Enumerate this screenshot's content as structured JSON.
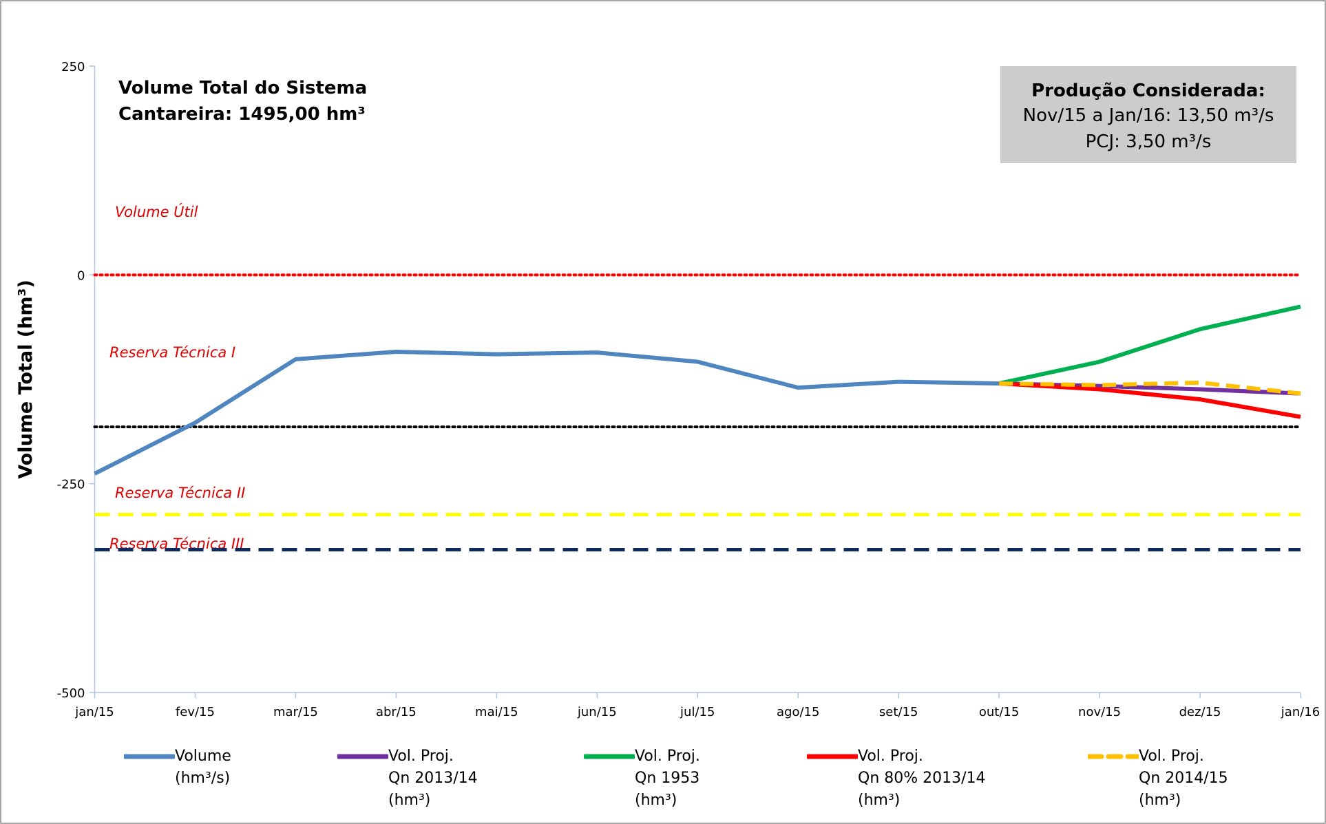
{
  "chart_data": {
    "type": "line",
    "title": "Volume Total do Sistema\nCantareira: 1495,00 hm³",
    "ylabel": "Volume Total (hm³)",
    "info_box": {
      "title": "Produção Considerada:",
      "lines": [
        "Nov/15 a Jan/16: 13,50 m³/s",
        "PCJ: 3,50 m³/s"
      ]
    },
    "annotations": [
      "Volume Útil",
      "Reserva Técnica I",
      "Reserva Técnica II",
      "Reserva Técnica III"
    ],
    "categories": [
      "jan/15",
      "fev/15",
      "mar/15",
      "abr/15",
      "mai/15",
      "jun/15",
      "jul/15",
      "ago/15",
      "set/15",
      "out/15",
      "nov/15",
      "dez/15",
      "jan/16"
    ],
    "ylim": [
      -500,
      250
    ],
    "yticks": [
      -500,
      -250,
      0,
      250
    ],
    "reference_lines": [
      {
        "value": 0,
        "color": "#ff0000",
        "style": "dotted"
      },
      {
        "value": -182,
        "color": "#000000",
        "style": "dotted"
      },
      {
        "value": -287,
        "color": "#ffff00",
        "style": "dashed"
      },
      {
        "value": -329,
        "color": "#0f2a5c",
        "style": "dashed"
      }
    ],
    "series": [
      {
        "name": "Volume\n(hm³/s)",
        "color": "#4f86c0",
        "style": "solid",
        "values": [
          -238,
          -177,
          -101,
          -92,
          -95,
          -93,
          -104,
          -135,
          -128,
          -130,
          null,
          null,
          null
        ]
      },
      {
        "name": "Vol. Proj.\nQn 2013/14\n(hm³)",
        "color": "#7030a0",
        "style": "solid",
        "values": [
          null,
          null,
          null,
          null,
          null,
          null,
          null,
          null,
          null,
          -130,
          -133,
          -137,
          -142
        ]
      },
      {
        "name": "Vol. Proj.\nQn 1953\n(hm³)",
        "color": "#00b050",
        "style": "solid",
        "values": [
          null,
          null,
          null,
          null,
          null,
          null,
          null,
          null,
          null,
          -130,
          -104,
          -65,
          -38
        ]
      },
      {
        "name": "Vol. Proj.\nQn 80% 2013/14\n(hm³)",
        "color": "#ff0000",
        "style": "solid",
        "values": [
          null,
          null,
          null,
          null,
          null,
          null,
          null,
          null,
          null,
          -130,
          -137,
          -149,
          -170
        ]
      },
      {
        "name": "Vol. Proj.\nQn 2014/15\n(hm³)",
        "color": "#ffc000",
        "style": "dashed",
        "values": [
          null,
          null,
          null,
          null,
          null,
          null,
          null,
          null,
          null,
          -130,
          -132,
          -129,
          -142
        ]
      }
    ]
  }
}
